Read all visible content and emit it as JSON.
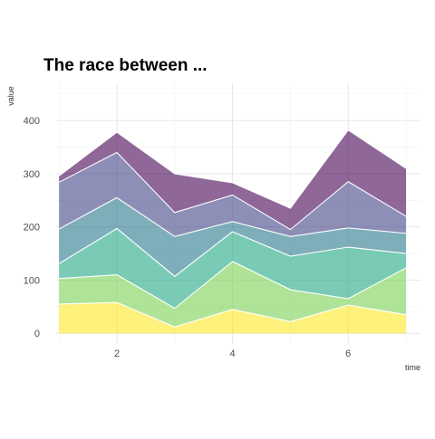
{
  "chart_data": {
    "type": "area",
    "stacked": true,
    "title": "The race between ...",
    "xlabel": "time",
    "ylabel": "value",
    "x": [
      1,
      2,
      3,
      4,
      5,
      6,
      7
    ],
    "xticks": [
      "2",
      "4",
      "6"
    ],
    "yticks": [
      "0",
      "100",
      "200",
      "300",
      "400"
    ],
    "xlim": [
      0.95,
      7.25
    ],
    "ylim": [
      -20,
      470
    ],
    "grid": true,
    "legend": "none",
    "series": [
      {
        "values": [
          55,
          58,
          12,
          45,
          22,
          53,
          35
        ],
        "color": "#fde725"
      },
      {
        "values": [
          48,
          52,
          35,
          90,
          60,
          12,
          88
        ],
        "color": "#7ad151"
      },
      {
        "values": [
          28,
          87,
          60,
          56,
          63,
          97,
          27
        ],
        "color": "#22a884"
      },
      {
        "values": [
          65,
          58,
          75,
          19,
          37,
          36,
          38
        ],
        "color": "#2a788e"
      },
      {
        "values": [
          88,
          85,
          45,
          50,
          13,
          87,
          32
        ],
        "color": "#414487"
      },
      {
        "values": [
          12,
          38,
          73,
          23,
          40,
          97,
          90
        ],
        "color": "#440154"
      }
    ]
  }
}
